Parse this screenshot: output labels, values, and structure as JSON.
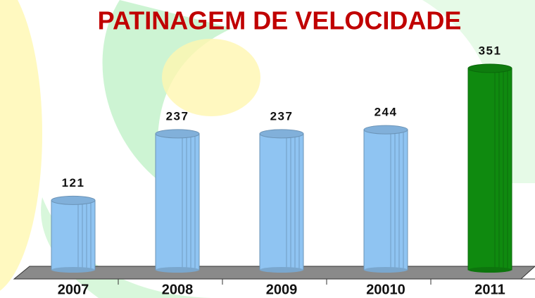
{
  "chart_data": {
    "type": "bar",
    "title": "PATINAGEM DE VELOCIDADE",
    "categories": [
      "2007",
      "2008",
      "2009",
      "20010",
      "2011"
    ],
    "values": [
      121,
      237,
      237,
      244,
      351
    ],
    "colors": [
      "#8fc4f2",
      "#8fc4f2",
      "#8fc4f2",
      "#8fc4f2",
      "#0f8a0f"
    ]
  }
}
